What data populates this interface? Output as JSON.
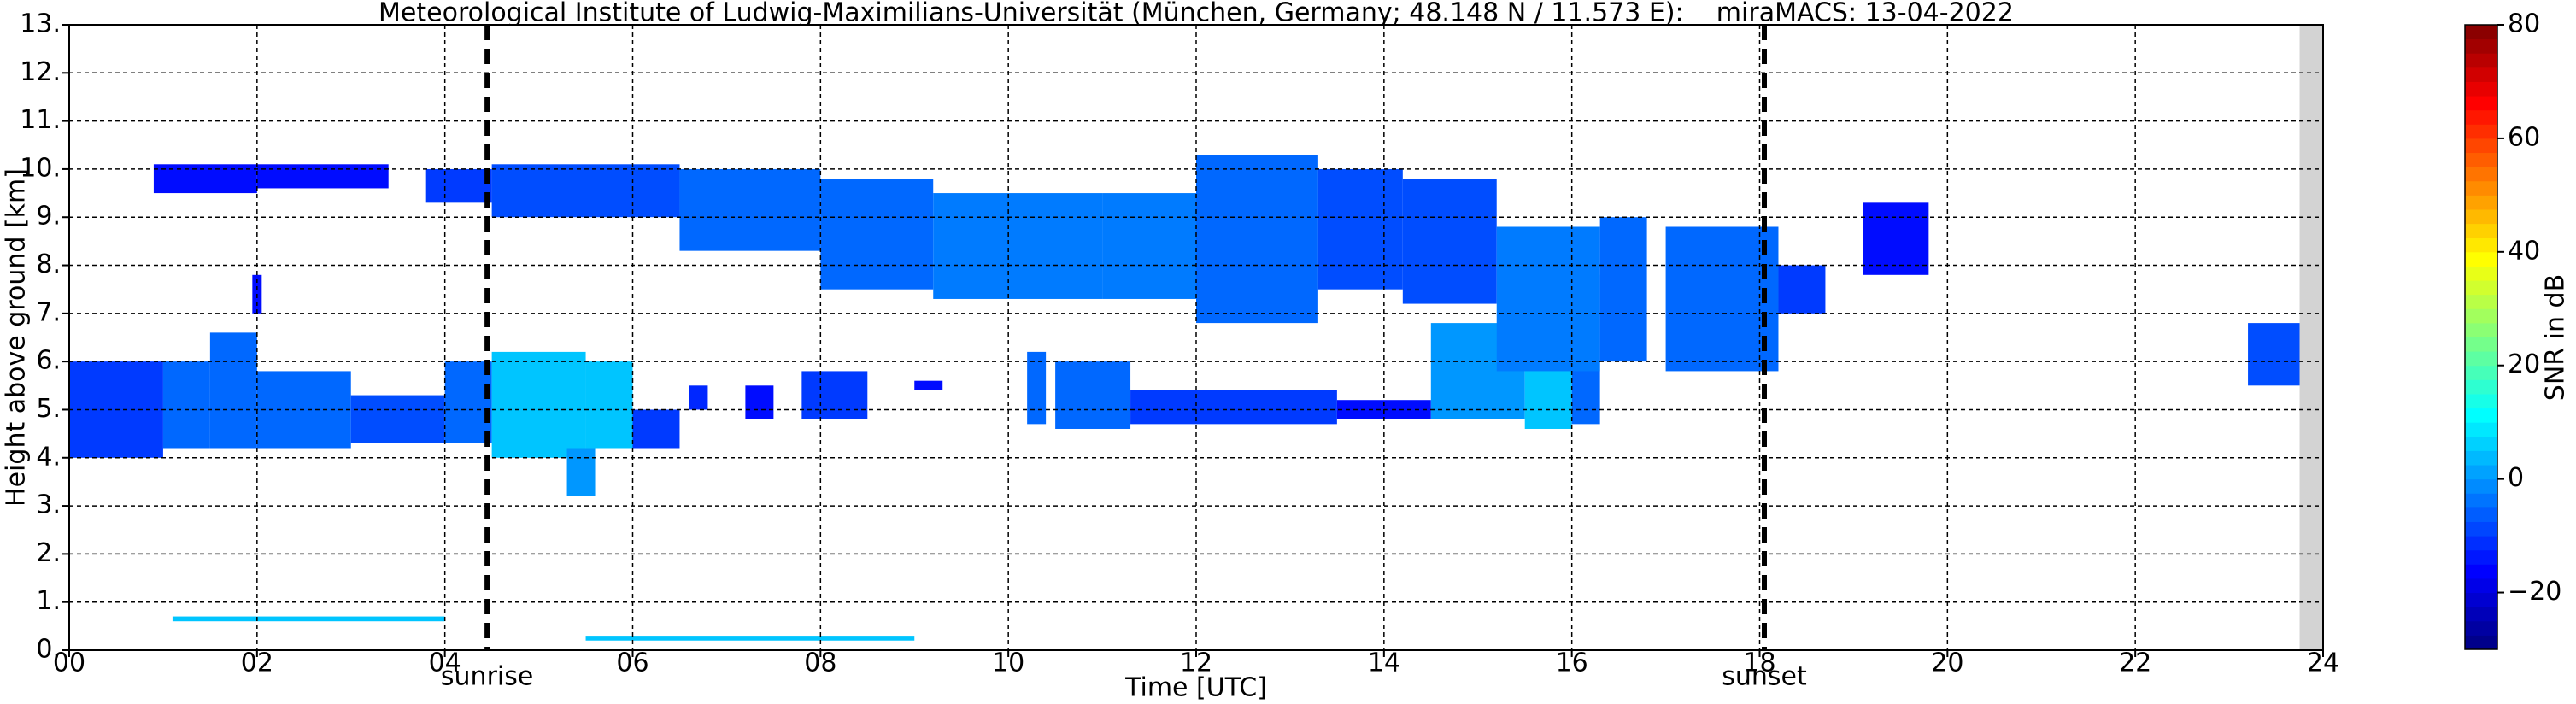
{
  "chart_data": {
    "type": "heatmap",
    "title": "Meteorological Institute of Ludwig-Maximilians-Universität (München, Germany; 48.148 N / 11.573 E):    miraMACS: 13-04-2022",
    "xlabel": "Time [UTC]",
    "ylabel": "Height above ground [km]",
    "xlim": [
      0,
      24
    ],
    "xticks": [
      {
        "value": 0,
        "label": "00"
      },
      {
        "value": 2,
        "label": "02"
      },
      {
        "value": 4,
        "label": "04"
      },
      {
        "value": 6,
        "label": "06"
      },
      {
        "value": 8,
        "label": "08"
      },
      10,
      12,
      14,
      16,
      18,
      20,
      22,
      24
    ],
    "ylim": [
      0,
      13
    ],
    "yticks": [
      {
        "value": 0,
        "label": "0."
      },
      {
        "value": 1,
        "label": "1."
      },
      {
        "value": 2,
        "label": "2."
      },
      {
        "value": 3,
        "label": "3."
      },
      {
        "value": 4,
        "label": "4."
      },
      {
        "value": 5,
        "label": "5."
      },
      {
        "value": 6,
        "label": "6."
      },
      {
        "value": 7,
        "label": "7."
      },
      {
        "value": 8,
        "label": "8."
      },
      {
        "value": 9,
        "label": "9."
      },
      {
        "value": 10,
        "label": "10."
      },
      {
        "value": 11,
        "label": "11."
      },
      {
        "value": 12,
        "label": "12."
      },
      {
        "value": 13,
        "label": "13."
      }
    ],
    "grid": true,
    "colorbar": {
      "label": "SNR in dB",
      "clim": [
        -30,
        80
      ],
      "ticks": [
        {
          "value": -20,
          "label": "−20"
        },
        0,
        20,
        40,
        60,
        80
      ],
      "colormap": "jet"
    },
    "events": [
      {
        "x": 4.45,
        "label": "sunrise"
      },
      {
        "x": 18.05,
        "label": "sunset"
      }
    ],
    "missing_data": [
      23.75,
      24
    ],
    "cells": [
      {
        "x": [
          0,
          1
        ],
        "y": [
          4.0,
          6.0
        ],
        "snr": -10
      },
      {
        "x": [
          1,
          1.5
        ],
        "y": [
          4.2,
          6.0
        ],
        "snr": -5
      },
      {
        "x": [
          1.5,
          2
        ],
        "y": [
          4.2,
          6.6
        ],
        "snr": -5
      },
      {
        "x": [
          2,
          3
        ],
        "y": [
          4.2,
          5.8
        ],
        "snr": -5
      },
      {
        "x": [
          3,
          4
        ],
        "y": [
          4.3,
          5.3
        ],
        "snr": -8
      },
      {
        "x": [
          4,
          4.5
        ],
        "y": [
          4.3,
          6.0
        ],
        "snr": -5
      },
      {
        "x": [
          4.5,
          5.5
        ],
        "y": [
          4.0,
          6.2
        ],
        "snr": 5
      },
      {
        "x": [
          5.5,
          6
        ],
        "y": [
          4.2,
          6.0
        ],
        "snr": 5
      },
      {
        "x": [
          5.3,
          5.6
        ],
        "y": [
          3.2,
          4.2
        ],
        "snr": 0
      },
      {
        "x": [
          6,
          6.5
        ],
        "y": [
          4.2,
          5.0
        ],
        "snr": -10
      },
      {
        "x": [
          6.6,
          6.8
        ],
        "y": [
          5.0,
          5.5
        ],
        "snr": -12
      },
      {
        "x": [
          7.2,
          7.5
        ],
        "y": [
          4.8,
          5.5
        ],
        "snr": -15
      },
      {
        "x": [
          7.8,
          8.5
        ],
        "y": [
          4.8,
          5.8
        ],
        "snr": -10
      },
      {
        "x": [
          9,
          9.3
        ],
        "y": [
          5.4,
          5.6
        ],
        "snr": -15
      },
      {
        "x": [
          10.2,
          10.4
        ],
        "y": [
          4.7,
          6.2
        ],
        "snr": -5
      },
      {
        "x": [
          10.5,
          11.3
        ],
        "y": [
          4.6,
          6.0
        ],
        "snr": -5
      },
      {
        "x": [
          11.3,
          13.5
        ],
        "y": [
          4.7,
          5.4
        ],
        "snr": -10
      },
      {
        "x": [
          13.5,
          14.5
        ],
        "y": [
          4.8,
          5.2
        ],
        "snr": -15
      },
      {
        "x": [
          14.5,
          15.5
        ],
        "y": [
          4.8,
          6.8
        ],
        "snr": 0
      },
      {
        "x": [
          15.5,
          16
        ],
        "y": [
          4.6,
          6.5
        ],
        "snr": 5
      },
      {
        "x": [
          16,
          16.3
        ],
        "y": [
          4.7,
          7.8
        ],
        "snr": -5
      },
      {
        "x": [
          0.9,
          2
        ],
        "y": [
          9.5,
          10.1
        ],
        "snr": -15
      },
      {
        "x": [
          2,
          3.4
        ],
        "y": [
          9.6,
          10.1
        ],
        "snr": -15
      },
      {
        "x": [
          3.8,
          4.5
        ],
        "y": [
          9.3,
          10.0
        ],
        "snr": -10
      },
      {
        "x": [
          4.5,
          6.5
        ],
        "y": [
          9.0,
          10.1
        ],
        "snr": -8
      },
      {
        "x": [
          6.5,
          8
        ],
        "y": [
          8.3,
          10.0
        ],
        "snr": -5
      },
      {
        "x": [
          8,
          9.2
        ],
        "y": [
          7.5,
          9.8
        ],
        "snr": -5
      },
      {
        "x": [
          9.2,
          11
        ],
        "y": [
          7.3,
          9.5
        ],
        "snr": -3
      },
      {
        "x": [
          11,
          12
        ],
        "y": [
          7.3,
          9.5
        ],
        "snr": -3
      },
      {
        "x": [
          12,
          13.3
        ],
        "y": [
          6.8,
          10.3
        ],
        "snr": -5
      },
      {
        "x": [
          13.3,
          14.2
        ],
        "y": [
          7.5,
          10.0
        ],
        "snr": -8
      },
      {
        "x": [
          14.2,
          15.2
        ],
        "y": [
          7.2,
          9.8
        ],
        "snr": -8
      },
      {
        "x": [
          15.2,
          16.3
        ],
        "y": [
          5.8,
          8.8
        ],
        "snr": -3
      },
      {
        "x": [
          16.3,
          16.8
        ],
        "y": [
          6.0,
          9.0
        ],
        "snr": -5
      },
      {
        "x": [
          17,
          18.2
        ],
        "y": [
          5.8,
          8.8
        ],
        "snr": -5
      },
      {
        "x": [
          18.2,
          18.7
        ],
        "y": [
          7.0,
          8.0
        ],
        "snr": -10
      },
      {
        "x": [
          19.1,
          19.8
        ],
        "y": [
          7.8,
          9.3
        ],
        "snr": -15
      },
      {
        "x": [
          23.2,
          23.75
        ],
        "y": [
          5.5,
          6.8
        ],
        "snr": -8
      },
      {
        "x": [
          1.95,
          2.05
        ],
        "y": [
          7.0,
          7.8
        ],
        "snr": -15
      },
      {
        "x": [
          1.1,
          4
        ],
        "y": [
          0.6,
          0.7
        ],
        "snr": 5
      },
      {
        "x": [
          5.5,
          9
        ],
        "y": [
          0.2,
          0.3
        ],
        "snr": 5
      }
    ]
  }
}
